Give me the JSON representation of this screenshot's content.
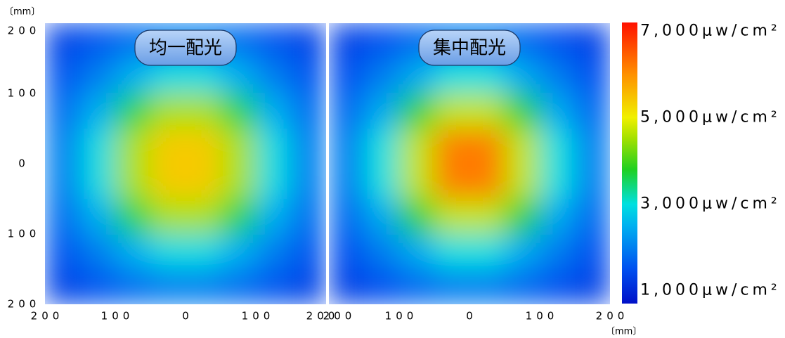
{
  "chart_data": {
    "type": "heatmap",
    "x_label": "〔mm〕",
    "y_label": "〔mm〕",
    "xlim": [
      -200,
      200
    ],
    "ylim": [
      -200,
      200
    ],
    "xticks": [
      {
        "value": -200,
        "label": "200"
      },
      {
        "value": -100,
        "label": "100"
      },
      0,
      100,
      200
    ],
    "yticks": [
      {
        "value": -200,
        "label": "200"
      },
      {
        "value": -100,
        "label": "100"
      },
      0,
      100,
      200
    ],
    "x": [
      -175,
      -125,
      -75,
      -25,
      25,
      75,
      125,
      175
    ],
    "y": [
      175,
      125,
      75,
      25,
      -25,
      -75,
      -125,
      -175
    ],
    "clim": [
      700,
      7200
    ],
    "colorscale": [
      {
        "value": 700,
        "color": "#0010c8"
      },
      {
        "value": 1500,
        "color": "#0050f0"
      },
      {
        "value": 2500,
        "color": "#00b0f0"
      },
      {
        "value": 3000,
        "color": "#00e0e0"
      },
      {
        "value": 3800,
        "color": "#20d020"
      },
      {
        "value": 4500,
        "color": "#a0e000"
      },
      {
        "value": 5000,
        "color": "#f0f000"
      },
      {
        "value": 6000,
        "color": "#ff9000"
      },
      {
        "value": 7200,
        "color": "#ff1000"
      }
    ],
    "colorbar_ticks": [
      {
        "value": 7000,
        "label": "7,000μw/cm²"
      },
      {
        "value": 5000,
        "label": "5,000μw/cm²"
      },
      {
        "value": 3000,
        "label": "3,000μw/cm²"
      },
      {
        "value": 1000,
        "label": "1,000μw/cm²"
      }
    ],
    "panels": [
      {
        "title": "均一配光",
        "z": [
          [
            1320,
            1550,
            1800,
            1980,
            1980,
            1800,
            1550,
            1320
          ],
          [
            1550,
            1980,
            2500,
            2950,
            2950,
            2500,
            1980,
            1550
          ],
          [
            1800,
            2500,
            3600,
            4550,
            4550,
            3600,
            2500,
            1800
          ],
          [
            1980,
            2950,
            4550,
            5400,
            5400,
            4550,
            2950,
            1980
          ],
          [
            1980,
            2950,
            4550,
            5400,
            5400,
            4550,
            2950,
            1980
          ],
          [
            1800,
            2500,
            3600,
            4550,
            4550,
            3600,
            2500,
            1800
          ],
          [
            1550,
            1980,
            2500,
            2950,
            2950,
            2500,
            1980,
            1550
          ],
          [
            1320,
            1550,
            1800,
            1980,
            1980,
            1800,
            1550,
            1320
          ]
        ]
      },
      {
        "title": "集中配光",
        "z": [
          [
            1300,
            1500,
            1750,
            1950,
            1950,
            1750,
            1500,
            1300
          ],
          [
            1500,
            1950,
            2450,
            3000,
            3000,
            2450,
            1950,
            1500
          ],
          [
            1750,
            2450,
            3700,
            4700,
            4700,
            3700,
            2450,
            1750
          ],
          [
            1950,
            3000,
            4700,
            6200,
            6200,
            4700,
            3000,
            1950
          ],
          [
            1950,
            3000,
            4700,
            6200,
            6200,
            4700,
            3000,
            1950
          ],
          [
            1750,
            2450,
            3700,
            4700,
            4700,
            3700,
            2450,
            1750
          ],
          [
            1500,
            1950,
            2450,
            3000,
            3000,
            2450,
            1950,
            1500
          ],
          [
            1300,
            1500,
            1750,
            1950,
            1950,
            1750,
            1500,
            1300
          ]
        ]
      }
    ]
  }
}
